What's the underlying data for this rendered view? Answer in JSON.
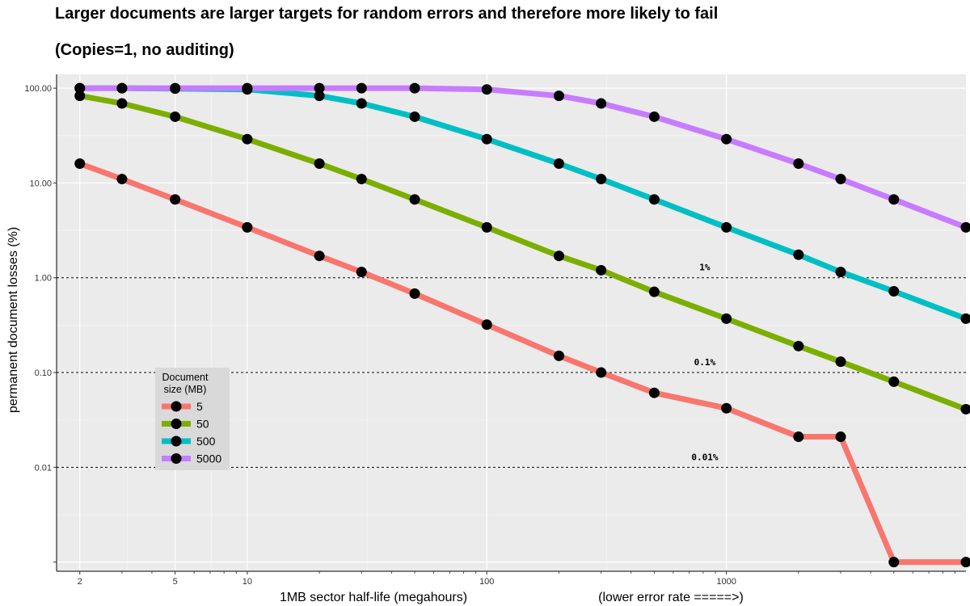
{
  "chart_data": {
    "type": "line",
    "title": "Larger documents are larger targets for random errors and therefore more likely to fail",
    "subtitle": "(Copies=1, no auditing)",
    "xlabel": "1MB sector half-life (megahours)",
    "xlabel_note": "(lower error rate =====>)",
    "ylabel": "permanent document losses (%)",
    "x_scale": "log",
    "y_scale": "log",
    "xlim": [
      1.6,
      10000
    ],
    "ylim": [
      0.0008,
      140
    ],
    "x_ticks": [
      {
        "value": 2,
        "label": "2"
      },
      {
        "value": 5,
        "label": "5"
      },
      {
        "value": 10,
        "label": "10"
      },
      {
        "value": 100,
        "label": "100"
      },
      {
        "value": 1000,
        "label": "1000"
      }
    ],
    "y_ticks": [
      {
        "value": 100,
        "label": "100.00"
      },
      {
        "value": 10,
        "label": "10.00"
      },
      {
        "value": 1,
        "label": "1.00"
      },
      {
        "value": 0.1,
        "label": "0.10"
      },
      {
        "value": 0.01,
        "label": "0.01"
      },
      {
        "value": 0.001,
        "label": ""
      }
    ],
    "reference_lines": [
      {
        "y": 1,
        "label": "1%",
        "label_x": 800
      },
      {
        "y": 0.1,
        "label": "0.1%",
        "label_x": 800
      },
      {
        "y": 0.01,
        "label": "0.01%",
        "label_x": 800
      }
    ],
    "legend": {
      "title": "Document\nsize (MB)",
      "placement": "bottom-left inside plot"
    },
    "grid": true,
    "x": [
      2,
      3,
      5,
      10,
      20,
      30,
      50,
      100,
      200,
      300,
      500,
      1000,
      2000,
      3000,
      5000,
      10000
    ],
    "series": [
      {
        "name": "5",
        "color": "#F8766D",
        "values": [
          16,
          11,
          6.7,
          3.4,
          1.7,
          1.15,
          0.68,
          0.32,
          0.15,
          0.1,
          0.061,
          0.042,
          0.021,
          0.021,
          0.001,
          0.001
        ]
      },
      {
        "name": "50",
        "color": "#7CAE00",
        "values": [
          83,
          69,
          50,
          29,
          16,
          11,
          6.7,
          3.4,
          1.7,
          1.2,
          0.71,
          0.37,
          0.19,
          0.13,
          0.08,
          0.041
        ]
      },
      {
        "name": "500",
        "color": "#00BFC4",
        "values": [
          100,
          100,
          99,
          97,
          83,
          69,
          50,
          29,
          16,
          11,
          6.7,
          3.4,
          1.75,
          1.15,
          0.72,
          0.37
        ]
      },
      {
        "name": "5000",
        "color": "#C77CFF",
        "values": [
          100,
          100,
          100,
          100,
          100,
          100,
          100,
          97,
          83,
          69,
          50,
          29,
          16,
          11,
          6.7,
          3.4
        ]
      }
    ]
  }
}
